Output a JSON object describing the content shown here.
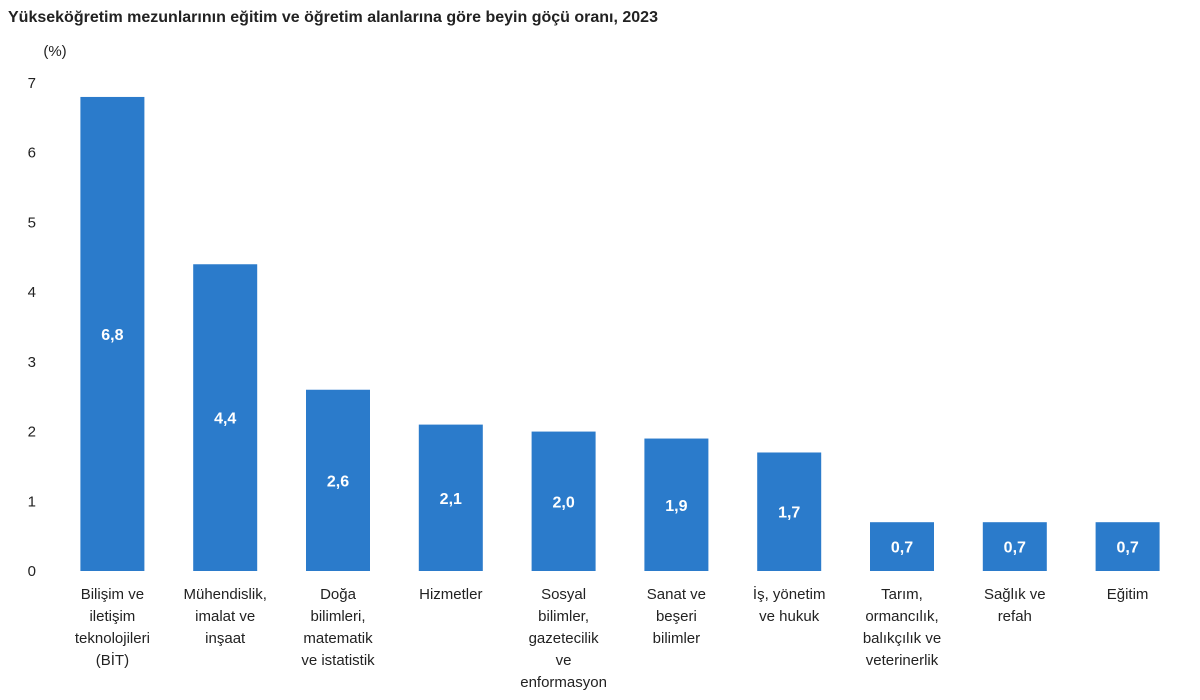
{
  "chart_data": {
    "type": "bar",
    "title": "Yükseköğretim mezunlarının eğitim ve öğretim alanlarına göre beyin göçü oranı, 2023",
    "y_label": "(%)",
    "categories": [
      "Bilişim ve\niletişim\nteknolojileri\n(BİT)",
      "Mühendislik,\nimalat ve\ninşaat",
      "Doğa\nbilimleri,\nmatematik\nve istatistik",
      "Hizmetler",
      "Sosyal\nbilimler,\ngazetecilik\nve\nenformasyon",
      "Sanat ve\nbeşeri\nbilimler",
      "İş, yönetim\nve hukuk",
      "Tarım,\normancılık,\nbalıkçılık ve\nveterinerlik",
      "Sağlık ve\nrefah",
      "Eğitim"
    ],
    "values": [
      6.8,
      4.4,
      2.6,
      2.1,
      2.0,
      1.9,
      1.7,
      0.7,
      0.7,
      0.7
    ],
    "value_labels": [
      "6,8",
      "4,4",
      "2,6",
      "2,1",
      "2,0",
      "1,9",
      "1,7",
      "0,7",
      "0,7",
      "0,7"
    ],
    "color": "#2b7bcb",
    "ylim": [
      0,
      7
    ],
    "yticks": [
      0,
      1,
      2,
      3,
      4,
      5,
      6,
      7
    ],
    "grid": false
  }
}
